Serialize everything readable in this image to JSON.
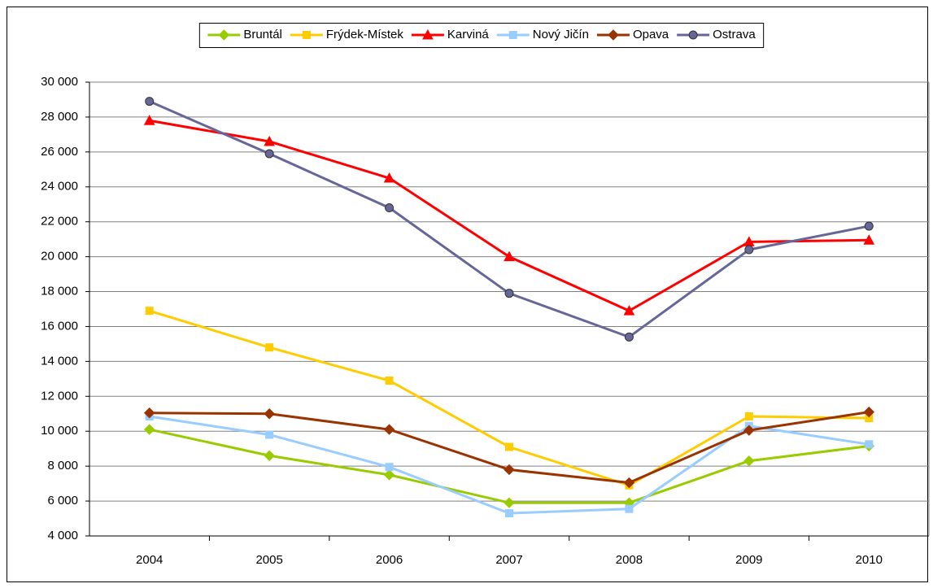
{
  "chart_data": {
    "type": "line",
    "legend": "top",
    "grid": true,
    "categories": [
      "2004",
      "2005",
      "2006",
      "2007",
      "2008",
      "2009",
      "2010"
    ],
    "ylim": [
      4000,
      30000
    ],
    "yticks": [
      {
        "value": 4000,
        "label": "4 000"
      },
      {
        "value": 6000,
        "label": "6 000"
      },
      {
        "value": 8000,
        "label": "8 000"
      },
      {
        "value": 10000,
        "label": "10 000"
      },
      {
        "value": 12000,
        "label": "12 000"
      },
      {
        "value": 14000,
        "label": "14 000"
      },
      {
        "value": 16000,
        "label": "16 000"
      },
      {
        "value": 18000,
        "label": "18 000"
      },
      {
        "value": 20000,
        "label": "20 000"
      },
      {
        "value": 22000,
        "label": "22 000"
      },
      {
        "value": 24000,
        "label": "24 000"
      },
      {
        "value": 26000,
        "label": "26 000"
      },
      {
        "value": 28000,
        "label": "28 000"
      },
      {
        "value": 30000,
        "label": "30 000"
      }
    ],
    "series": [
      {
        "name": "Bruntál",
        "color": "#99cc00",
        "marker": "diamond",
        "values": [
          10100,
          8600,
          7500,
          5900,
          5900,
          8300,
          9150
        ]
      },
      {
        "name": "Frýdek-Místek",
        "color": "#ffcc00",
        "marker": "square",
        "values": [
          16900,
          14800,
          12900,
          9100,
          6900,
          10850,
          10750
        ]
      },
      {
        "name": "Karviná",
        "color": "#ff0000",
        "marker": "triangle",
        "values": [
          27800,
          26600,
          24500,
          20000,
          16900,
          20850,
          20950
        ]
      },
      {
        "name": "Nový Jičín",
        "color": "#99ccff",
        "marker": "square",
        "values": [
          10850,
          9800,
          7950,
          5300,
          5550,
          10300,
          9250
        ]
      },
      {
        "name": "Opava",
        "color": "#993300",
        "marker": "diamond",
        "values": [
          11050,
          11000,
          10100,
          7800,
          7050,
          10050,
          11100
        ]
      },
      {
        "name": "Ostrava",
        "color": "#666699",
        "marker": "circle",
        "values": [
          28900,
          25900,
          22800,
          17900,
          15400,
          20400,
          21750
        ]
      }
    ]
  }
}
